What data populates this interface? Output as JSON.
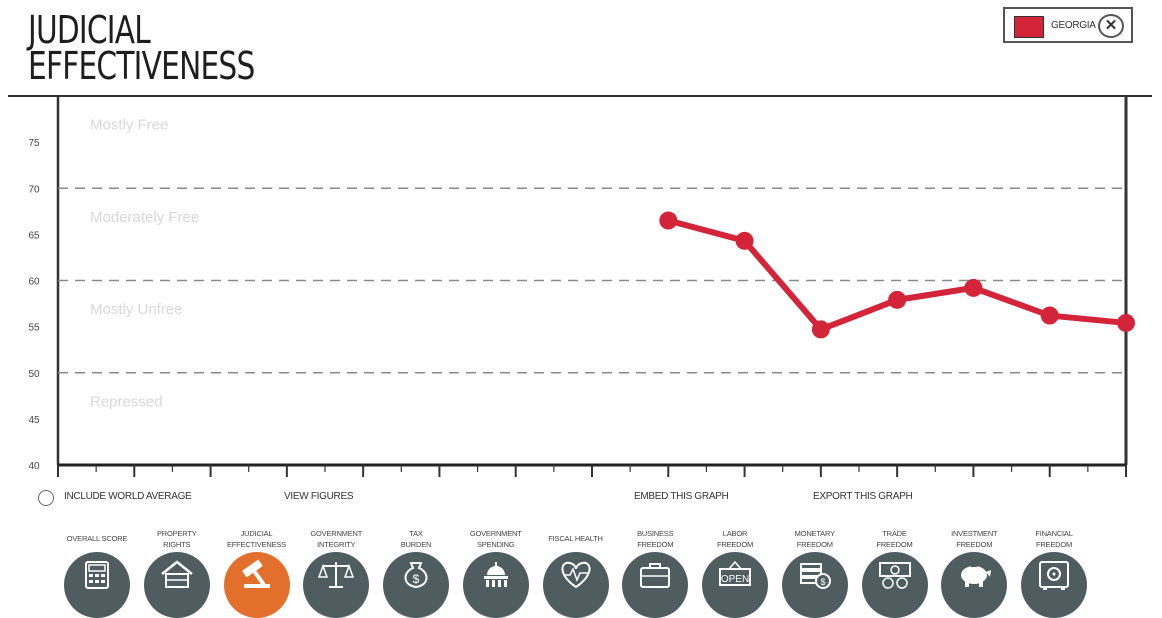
{
  "page": {
    "title_line1": "JUDICIAL",
    "title_line2": "EFFECTIVENESS"
  },
  "legend": {
    "country": "GEORGIA",
    "color": "#d3243a",
    "close_icon": "close-icon",
    "close_symbol": "✕"
  },
  "controls": {
    "include_world_average": "INCLUDE WORLD AVERAGE",
    "view_figures": "VIEW FIGURES",
    "embed": "EMBED THIS GRAPH",
    "export": "EXPORT THIS GRAPH"
  },
  "chart_data": {
    "type": "line",
    "title": "JUDICIAL EFFECTIVENESS",
    "xlabel": "",
    "ylabel": "",
    "ylim": [
      40,
      80
    ],
    "yticks": [
      40,
      45,
      50,
      55,
      60,
      65,
      70,
      75
    ],
    "xlim": [
      0,
      14
    ],
    "x_tick_count": 28,
    "grid": "dashed threshold lines at 50, 60, 70",
    "thresholds": [
      50,
      60,
      70
    ],
    "bands": [
      {
        "label": "Mostly Free",
        "y": 77
      },
      {
        "label": "Moderately Free",
        "y": 67
      },
      {
        "label": "Mostly Unfree",
        "y": 57
      },
      {
        "label": "Repressed",
        "y": 47
      }
    ],
    "legend_position": "top-right",
    "series": [
      {
        "name": "GEORGIA",
        "color": "#d3243a",
        "x": [
          8,
          9,
          10,
          11,
          12,
          13,
          14
        ],
        "values": [
          66.5,
          64.3,
          54.7,
          57.9,
          59.2,
          56.2,
          55.4
        ]
      }
    ]
  },
  "nav": {
    "active_color": "#e36f2c",
    "icon_color": "#4f5d61",
    "items": [
      {
        "label1": "OVERALL SCORE",
        "label2": "",
        "icon": "calculator-icon",
        "active": false
      },
      {
        "label1": "PROPERTY",
        "label2": "RIGHTS",
        "icon": "house-icon",
        "active": false
      },
      {
        "label1": "JUDICIAL",
        "label2": "EFFECTIVENESS",
        "icon": "gavel-icon",
        "active": true
      },
      {
        "label1": "GOVERNMENT",
        "label2": "INTEGRITY",
        "icon": "scales-icon",
        "active": false
      },
      {
        "label1": "TAX",
        "label2": "BURDEN",
        "icon": "money-bag-icon",
        "active": false
      },
      {
        "label1": "GOVERNMENT",
        "label2": "SPENDING",
        "icon": "capitol-icon",
        "active": false
      },
      {
        "label1": "FISCAL HEALTH",
        "label2": "",
        "icon": "heart-dollar-icon",
        "active": false
      },
      {
        "label1": "BUSINESS",
        "label2": "FREEDOM",
        "icon": "briefcase-icon",
        "active": false
      },
      {
        "label1": "LABOR",
        "label2": "FREEDOM",
        "icon": "open-sign-icon",
        "active": false,
        "icon_text": "OPEN"
      },
      {
        "label1": "MONETARY",
        "label2": "FREEDOM",
        "icon": "coins-icon",
        "active": false
      },
      {
        "label1": "TRADE",
        "label2": "FREEDOM",
        "icon": "currency-exchange-icon",
        "active": false
      },
      {
        "label1": "INVESTMENT",
        "label2": "FREEDOM",
        "icon": "piggy-bank-icon",
        "active": false
      },
      {
        "label1": "FINANCIAL",
        "label2": "FREEDOM",
        "icon": "safe-icon",
        "active": false
      }
    ]
  }
}
